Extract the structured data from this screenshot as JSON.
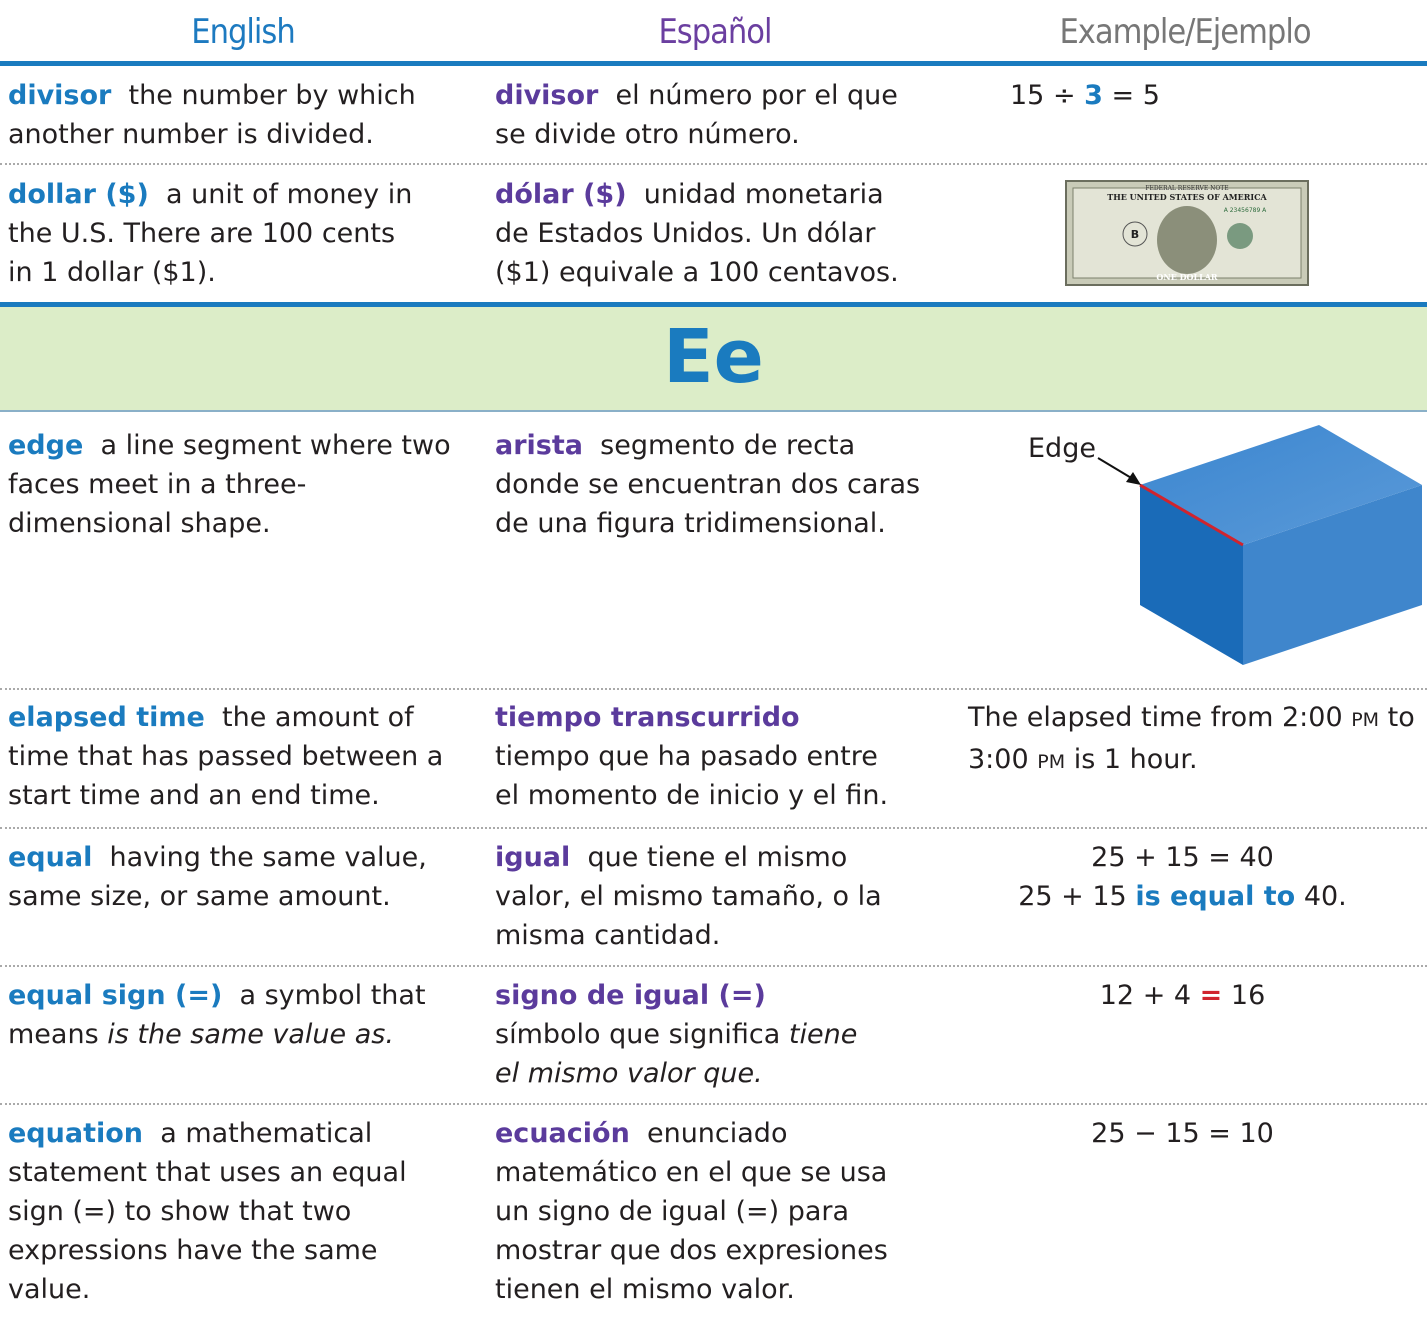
{
  "header": {
    "english": "English",
    "spanish": "Español",
    "example": "Example/Ejemplo"
  },
  "section": "Ee",
  "entries": [
    {
      "en_term": "divisor",
      "en_def": "the number by which another number is divided.",
      "es_term": "divisor",
      "es_def": "el número por el que se divide otro número.",
      "example": [
        "15 ÷",
        "3",
        "= 5"
      ]
    },
    {
      "en_term": "dollar ($)",
      "en_def": "a unit of money in the U.S. There are 100 cents in 1 dollar ($1).",
      "es_term": "dólar ($)",
      "es_def": "unidad monetaria de Estados Unidos. Un dólar ($1) equivale a 100 centavos.",
      "bill": {
        "top": "FEDERAL RESERVE NOTE",
        "country": "THE UNITED STATES OF AMERICA",
        "serial": "A 23456789 A",
        "bank": "B",
        "bottom": "ONE DOLLAR"
      }
    },
    {
      "en_term": "edge",
      "en_def": "a line segment where two faces meet in a three-dimensional shape.",
      "es_term": "arista",
      "es_def": "segmento de recta donde se encuentran dos caras de una figura tridimensional.",
      "label": "Edge"
    },
    {
      "en_term": "elapsed time",
      "en_def": "the amount of time that has passed between a start time and an end time.",
      "es_term": "tiempo transcurrido",
      "es_def": "tiempo que ha pasado entre el momento de inicio y el fin.",
      "example": [
        "The elapsed time from 2:00",
        "PM",
        "to 3:00",
        "PM",
        "is 1 hour."
      ]
    },
    {
      "en_term": "equal",
      "en_def": "having the same value, same size, or same amount.",
      "es_term": "igual",
      "es_def": "que tiene el mismo valor, el mismo tamaño, o la misma cantidad.",
      "example": [
        "25 + 15 = 40",
        "25 + 15",
        "is equal to",
        "40."
      ]
    },
    {
      "en_term": "equal sign (=)",
      "en_def": "a symbol that means",
      "en_em": "is the same value as.",
      "es_term": "signo de igual (=)",
      "es_def": "símbolo que significa",
      "es_em": "tiene el mismo valor que.",
      "example": [
        "12 + 4",
        "=",
        "16"
      ]
    },
    {
      "en_term": "equation",
      "en_def": "a mathematical statement that uses an equal sign (=) to show that two expressions have the same value.",
      "es_term": "ecuación",
      "es_def": "enunciado matemático en el que se usa un signo de igual (=) para mostrar que dos expresiones tienen el mismo valor.",
      "example": [
        "25 − 15 = 10"
      ]
    }
  ]
}
